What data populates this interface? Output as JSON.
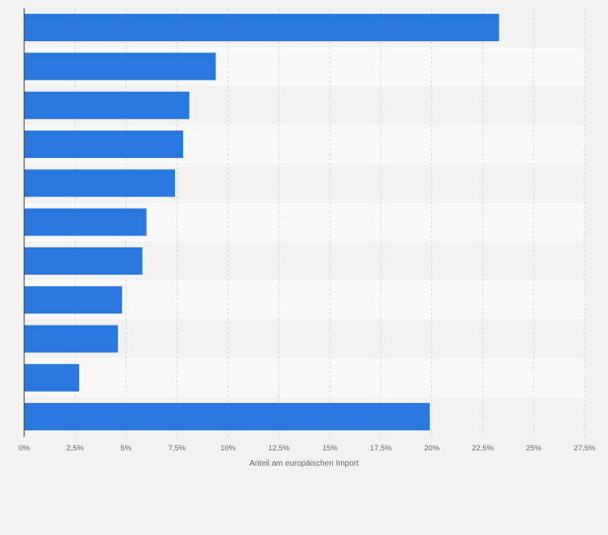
{
  "chart_data": {
    "type": "bar",
    "orientation": "horizontal",
    "categories": [
      "",
      "",
      "",
      "",
      "",
      "",
      "",
      "",
      "",
      "",
      ""
    ],
    "values": [
      23.3,
      9.4,
      8.1,
      7.8,
      7.4,
      6.0,
      5.8,
      4.8,
      4.6,
      2.7,
      19.9
    ],
    "xlabel": "Anteil am europäischen Import",
    "ylabel": "",
    "xlim": [
      0,
      27.5
    ],
    "ticks": [
      0,
      2.5,
      5,
      7.5,
      10,
      12.5,
      15,
      17.5,
      20,
      22.5,
      25,
      27.5
    ],
    "tick_labels": [
      "0%",
      "2,5%",
      "5%",
      "7,5%",
      "10%",
      "12,5%",
      "15%",
      "17,5%",
      "20%",
      "22,5%",
      "25%",
      "27,5%"
    ],
    "bar_color": "#2878e0",
    "grid": true,
    "legend": "none"
  }
}
